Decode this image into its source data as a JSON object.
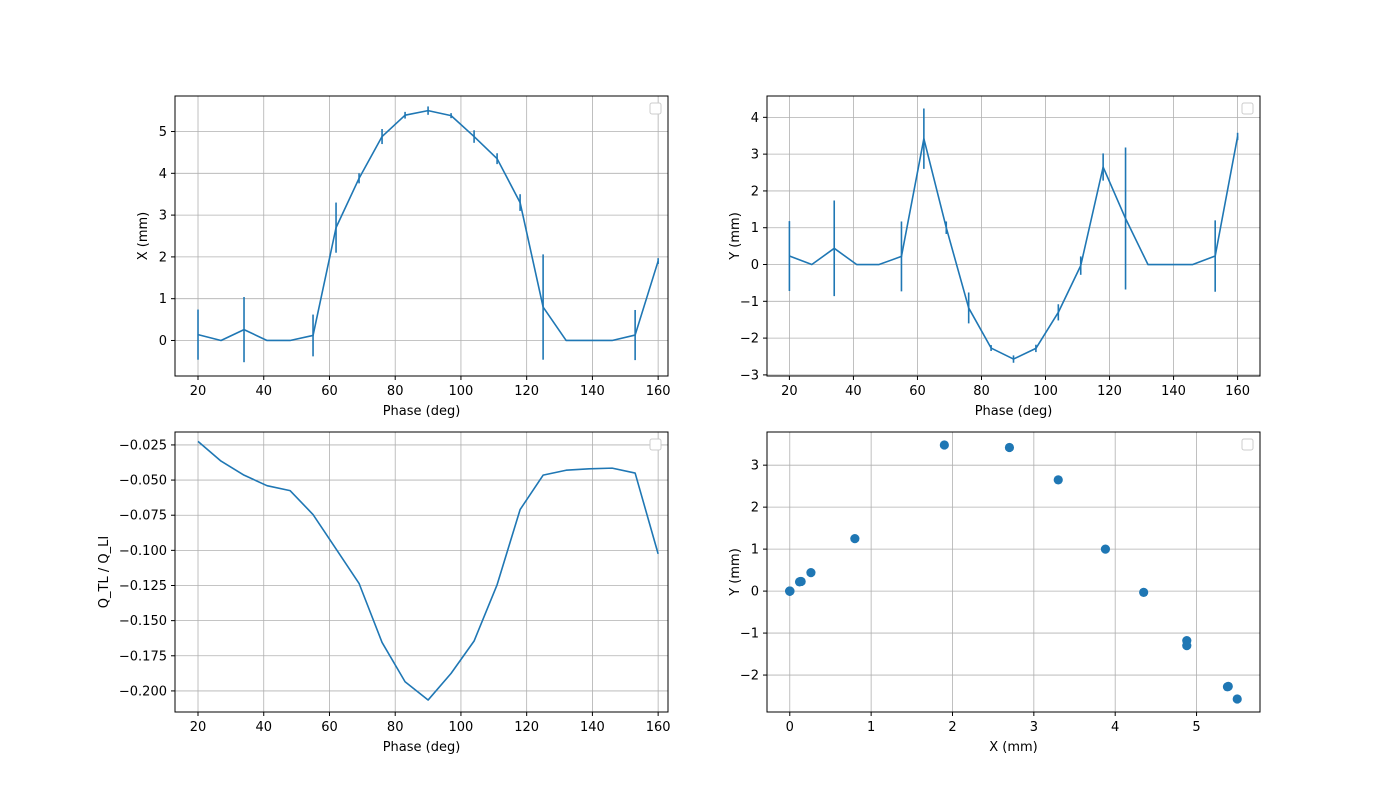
{
  "colors": {
    "series": "#1f77b4",
    "grid": "#b0b0b0",
    "axis": "#000000"
  },
  "chart_data": [
    {
      "id": "x-vs-phase",
      "type": "line",
      "error_bars": true,
      "title": "",
      "xlabel": "Phase (deg)",
      "ylabel": "X (mm)",
      "xlim": [
        13,
        163
      ],
      "ylim": [
        -0.85,
        5.85
      ],
      "xticks": [
        20,
        40,
        60,
        80,
        100,
        120,
        140,
        160
      ],
      "yticks": [
        0,
        1,
        2,
        3,
        4,
        5
      ],
      "grid": true,
      "legend": "top-right (empty)",
      "x": [
        20,
        27,
        34,
        41,
        48,
        55,
        62,
        69,
        76,
        83,
        90,
        97,
        104,
        111,
        118,
        125,
        132,
        139,
        146,
        153,
        160
      ],
      "y": [
        0.14,
        0.0,
        0.26,
        0.0,
        0.0,
        0.12,
        2.7,
        3.88,
        4.88,
        5.39,
        5.5,
        5.38,
        4.88,
        4.35,
        3.3,
        0.8,
        0.0,
        0.0,
        0.0,
        0.13,
        1.9
      ],
      "yerr": [
        0.6,
        0.0,
        0.78,
        0.0,
        0.0,
        0.5,
        0.6,
        0.12,
        0.18,
        0.08,
        0.1,
        0.06,
        0.15,
        0.13,
        0.2,
        1.26,
        0.0,
        0.0,
        0.0,
        0.6,
        0.07
      ]
    },
    {
      "id": "y-vs-phase",
      "type": "line",
      "error_bars": true,
      "title": "",
      "xlabel": "Phase (deg)",
      "ylabel": "Y (mm)",
      "xlim": [
        13,
        167
      ],
      "ylim": [
        -3.03,
        4.58
      ],
      "xticks": [
        20,
        40,
        60,
        80,
        100,
        120,
        140,
        160
      ],
      "yticks": [
        -3,
        -2,
        -1,
        0,
        1,
        2,
        3,
        4
      ],
      "grid": true,
      "legend": "top-right (empty)",
      "x": [
        20,
        27,
        34,
        41,
        48,
        55,
        62,
        69,
        76,
        83,
        90,
        97,
        104,
        111,
        118,
        125,
        132,
        139,
        146,
        153,
        160
      ],
      "y": [
        0.23,
        0.0,
        0.44,
        0.0,
        0.0,
        0.22,
        3.42,
        1.0,
        -1.18,
        -2.27,
        -2.57,
        -2.28,
        -1.3,
        -0.03,
        2.65,
        1.25,
        0.0,
        0.0,
        0.0,
        0.23,
        3.48
      ],
      "yerr": [
        0.95,
        0.0,
        1.3,
        0.0,
        0.0,
        0.95,
        0.82,
        0.17,
        0.42,
        0.08,
        0.1,
        0.1,
        0.22,
        0.25,
        0.37,
        1.93,
        0.0,
        0.0,
        0.0,
        0.97,
        0.1
      ]
    },
    {
      "id": "q-ratio-vs-phase",
      "type": "line",
      "error_bars": false,
      "title": "",
      "xlabel": "Phase (deg)",
      "ylabel": "Q_TL / Q_LI",
      "xlim": [
        13,
        163
      ],
      "ylim": [
        -0.215,
        -0.0158
      ],
      "xticks": [
        20,
        40,
        60,
        80,
        100,
        120,
        140,
        160
      ],
      "yticks": [
        -0.2,
        -0.175,
        -0.15,
        -0.125,
        -0.1,
        -0.075,
        -0.05,
        -0.025
      ],
      "ytick_labels": [
        "−0.200",
        "−0.175",
        "−0.150",
        "−0.125",
        "−0.100",
        "−0.075",
        "−0.050",
        "−0.025"
      ],
      "grid": true,
      "legend": "top-right (empty)",
      "x": [
        20,
        27,
        34,
        41,
        48,
        55,
        62,
        69,
        76,
        83,
        90,
        97,
        104,
        111,
        118,
        125,
        132,
        139,
        146,
        153,
        160
      ],
      "y": [
        -0.0225,
        -0.0365,
        -0.0465,
        -0.054,
        -0.0575,
        -0.0745,
        -0.099,
        -0.1235,
        -0.1655,
        -0.1935,
        -0.2065,
        -0.1875,
        -0.1645,
        -0.1245,
        -0.071,
        -0.0465,
        -0.043,
        -0.042,
        -0.0415,
        -0.045,
        -0.1025
      ]
    },
    {
      "id": "y-vs-x",
      "type": "scatter",
      "title": "",
      "xlabel": "X (mm)",
      "ylabel": "Y (mm)",
      "xlim": [
        -0.28,
        5.78
      ],
      "ylim": [
        -2.88,
        3.79
      ],
      "xticks": [
        0,
        1,
        2,
        3,
        4,
        5
      ],
      "yticks": [
        -2,
        -1,
        0,
        1,
        2,
        3
      ],
      "grid": true,
      "legend": "top-right (empty)",
      "x": [
        0.0,
        0.0,
        0.0,
        0.0,
        0.0,
        0.12,
        0.13,
        0.14,
        0.26,
        0.8,
        1.9,
        2.7,
        3.3,
        3.88,
        4.35,
        4.88,
        4.88,
        5.38,
        5.39,
        5.5
      ],
      "y": [
        0.0,
        0.0,
        0.0,
        0.0,
        0.0,
        0.22,
        0.23,
        0.23,
        0.44,
        1.25,
        3.48,
        3.42,
        2.65,
        1.0,
        -0.03,
        -1.18,
        -1.3,
        -2.28,
        -2.27,
        -2.57
      ]
    }
  ]
}
